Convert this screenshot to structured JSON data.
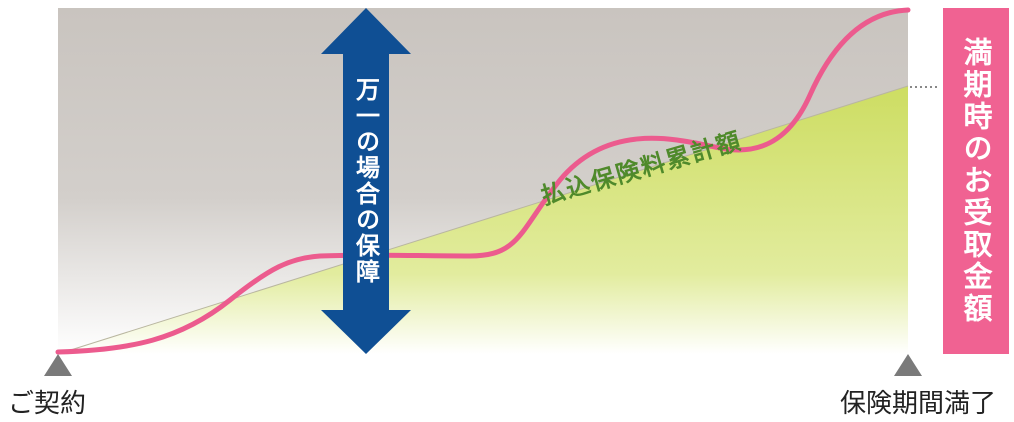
{
  "diagram": {
    "start_label": "ご契約",
    "end_label": "保険期間満了",
    "arrow_label": "万一の場合の保障",
    "paid_label": "払込保険料累計額",
    "maturity_label": "満期時のお受取金額"
  },
  "colors": {
    "area_gray": "#ccc7c2",
    "area_green": "#d1e16f",
    "arrow_blue": "#0f4f94",
    "curve_pink": "#ec5b8e",
    "pink_box": "#f06292",
    "marker_gray": "#7a7a7a",
    "paid_text": "#4f8a2b"
  }
}
